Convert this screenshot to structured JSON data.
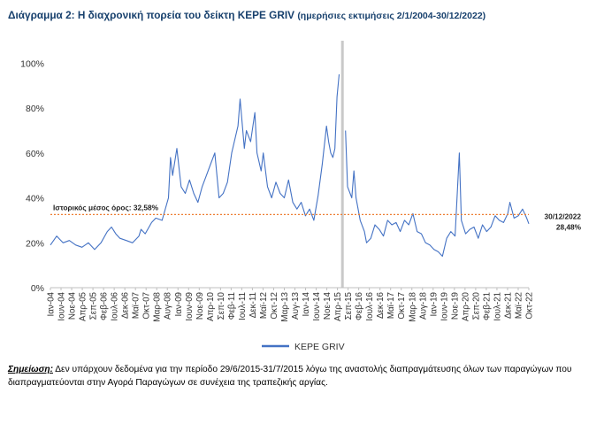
{
  "title": {
    "main": "Διάγραμμα 2: Η διαχρονική πορεία του δείκτη ΚΕΡΕ GRIV",
    "sub": "(ημερήσιες εκτιμήσεις 2/1/2004-30/12/2022)"
  },
  "note": {
    "lead": "Σημείωση:",
    "text": "Δεν υπάρχουν δεδομένα για την περίοδο 29/6/2015-31/7/2015 λόγω της αναστολής διαπραγμάτευσης όλων των παραγώγων που διαπραγματεύονται στην Αγορά Παραγώγων σε συνέχεια της τραπεζικής αργίας."
  },
  "chart_data": {
    "type": "line",
    "xlabel": "",
    "ylabel": "",
    "ylim": [
      0,
      110
    ],
    "yticks": [
      0,
      20,
      40,
      60,
      80,
      100
    ],
    "ytick_labels": [
      "0%",
      "20%",
      "40%",
      "60%",
      "80%",
      "100%"
    ],
    "x_range": [
      "2004-01",
      "2022-12"
    ],
    "xtick_labels": [
      "Ιαν-04",
      "Ιουν-04",
      "Νοε-04",
      "Απρ-05",
      "Σεπ-05",
      "Φεβ-06",
      "Ιουλ-06",
      "Δεκ-06",
      "Μαϊ-07",
      "Οκτ-07",
      "Μαρ-08",
      "Αυγ-08",
      "Ιαν-09",
      "Ιουν-09",
      "Νοε-09",
      "Απρ-10",
      "Σεπ-10",
      "Φεβ-11",
      "Ιουλ-11",
      "Δεκ-11",
      "Μαϊ-12",
      "Οκτ-12",
      "Μαρ-13",
      "Αυγ-13",
      "Ιαν-14",
      "Ιουν-14",
      "Νοε-14",
      "Απρ-15",
      "Σεπ-15",
      "Φεβ-16",
      "Ιουλ-16",
      "Δεκ-16",
      "Μαϊ-17",
      "Οκτ-17",
      "Μαρ-18",
      "Αυγ-18",
      "Ιαν-19",
      "Ιουν-19",
      "Νοε-19",
      "Απρ-20",
      "Σεπ-20",
      "Φεβ-21",
      "Ιουλ-21",
      "Δεκ-21",
      "Μαϊ-22",
      "Οκτ-22"
    ],
    "series": [
      {
        "name": "ΚΕΡΕ GRIV",
        "color": "#4472c4",
        "unit": "%",
        "x": [
          "2004-01",
          "2004-04",
          "2004-07",
          "2004-10",
          "2005-01",
          "2005-04",
          "2005-07",
          "2005-10",
          "2006-01",
          "2006-04",
          "2006-06",
          "2006-08",
          "2006-10",
          "2007-01",
          "2007-04",
          "2007-07",
          "2007-08",
          "2007-10",
          "2008-01",
          "2008-03",
          "2008-06",
          "2008-09",
          "2008-10",
          "2008-11",
          "2009-01",
          "2009-03",
          "2009-05",
          "2009-07",
          "2009-09",
          "2009-11",
          "2010-01",
          "2010-03",
          "2010-05",
          "2010-07",
          "2010-09",
          "2010-11",
          "2011-01",
          "2011-03",
          "2011-06",
          "2011-07",
          "2011-09",
          "2011-10",
          "2011-12",
          "2012-02",
          "2012-03",
          "2012-05",
          "2012-06",
          "2012-08",
          "2012-10",
          "2012-12",
          "2013-02",
          "2013-04",
          "2013-06",
          "2013-08",
          "2013-10",
          "2013-12",
          "2014-02",
          "2014-04",
          "2014-06",
          "2014-08",
          "2014-10",
          "2014-12",
          "2015-01",
          "2015-02",
          "2015-03",
          "2015-04",
          "2015-05",
          "2015-06",
          "2015-08",
          "2015-09",
          "2015-10",
          "2015-12",
          "2016-01",
          "2016-02",
          "2016-04",
          "2016-06",
          "2016-07",
          "2016-09",
          "2016-11",
          "2017-01",
          "2017-03",
          "2017-05",
          "2017-07",
          "2017-09",
          "2017-11",
          "2018-01",
          "2018-03",
          "2018-05",
          "2018-07",
          "2018-09",
          "2018-11",
          "2019-01",
          "2019-03",
          "2019-05",
          "2019-07",
          "2019-09",
          "2019-11",
          "2020-01",
          "2020-03",
          "2020-04",
          "2020-06",
          "2020-08",
          "2020-10",
          "2020-12",
          "2021-02",
          "2021-04",
          "2021-06",
          "2021-08",
          "2021-10",
          "2021-12",
          "2022-02",
          "2022-03",
          "2022-05",
          "2022-07",
          "2022-09",
          "2022-11",
          "2022-12"
        ],
        "y": [
          19,
          23,
          20,
          21,
          19,
          18,
          20,
          17,
          20,
          25,
          27,
          24,
          22,
          21,
          20,
          23,
          26,
          24,
          29,
          31,
          30,
          40,
          58,
          50,
          62,
          45,
          42,
          48,
          42,
          38,
          45,
          50,
          55,
          60,
          40,
          42,
          47,
          60,
          72,
          84,
          62,
          70,
          65,
          78,
          60,
          52,
          60,
          45,
          40,
          47,
          42,
          40,
          48,
          38,
          35,
          38,
          32,
          35,
          30,
          41,
          55,
          72,
          65,
          60,
          58,
          62,
          85,
          95,
          null,
          70,
          45,
          40,
          52,
          40,
          30,
          25,
          20,
          22,
          28,
          26,
          23,
          30,
          28,
          29,
          25,
          30,
          28,
          33,
          25,
          24,
          20,
          19,
          17,
          16,
          14,
          22,
          25,
          23,
          60,
          30,
          24,
          26,
          27,
          22,
          28,
          25,
          27,
          32,
          30,
          29,
          33,
          38,
          31,
          32,
          35,
          31,
          28.48
        ]
      }
    ],
    "reference_lines": [
      {
        "label": "Ιστορικός μέσος όρος: 32,58%",
        "value": 32.58,
        "color": "#ed7d31"
      }
    ],
    "gap": {
      "from": "2015-06-29",
      "to": "2015-07-31"
    },
    "end_annotation": {
      "date": "30/12/2022",
      "value": "28,48%"
    },
    "legend": {
      "position": "bottom"
    }
  }
}
